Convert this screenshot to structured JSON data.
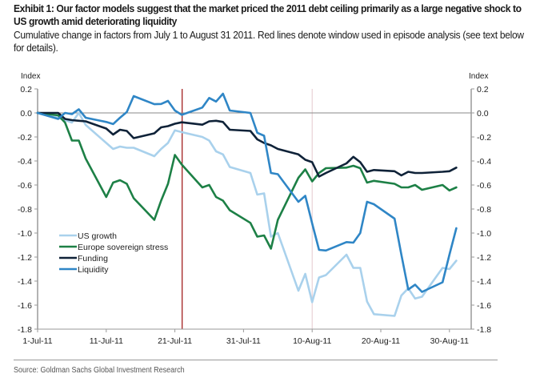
{
  "exhibit": {
    "title": "Exhibit 1: Our factor models suggest that the market priced the 2011 debt ceiling primarily as a large negative shock to US growth amid deteriorating liquidity",
    "subtitle": "Cumulative change in factors from July 1 to August 31 2011. Red lines denote window used in episode analysis (see text below for details).",
    "source": "Source: Goldman Sachs Global Investment Research"
  },
  "chart_data": {
    "type": "line",
    "title": "Exhibit 1: Our factor models suggest that the market priced the 2011 debt ceiling primarily as a large negative shock to US growth amid deteriorating liquidity",
    "xlabel": "",
    "ylabel": "Index",
    "ylabel_right": "Index",
    "ylim": [
      -1.8,
      0.2
    ],
    "yticks": [
      "0.2",
      "0.0",
      "-0.2",
      "-0.4",
      "-0.6",
      "-0.8",
      "-1.0",
      "-1.2",
      "-1.4",
      "-1.6",
      "-1.8"
    ],
    "ytick_values": [
      0.2,
      0.0,
      -0.2,
      -0.4,
      -0.6,
      -0.8,
      -1.0,
      -1.2,
      -1.4,
      -1.6,
      -1.8
    ],
    "xlim": [
      "1-Jul-11",
      "2-Sep-11"
    ],
    "xtick_labels": [
      "1-Jul-11",
      "11-Jul-11",
      "21-Jul-11",
      "31-Jul-11",
      "10-Aug-11",
      "20-Aug-11",
      "30-Aug-11"
    ],
    "xtick_days": [
      0,
      10,
      20,
      30,
      40,
      50,
      60
    ],
    "grid": false,
    "legend_position": "bottom-left",
    "reference_lines": [
      {
        "type": "vertical",
        "date": "22-Jul-11",
        "day": 21,
        "color": "#a31f1f",
        "label": "episode window start"
      },
      {
        "type": "vertical",
        "date": "10-Aug-11",
        "day": 40,
        "color": "#e3c9cc",
        "label": "episode window end"
      },
      {
        "type": "horizontal",
        "value": 0.0,
        "color": "#8a8a8a"
      }
    ],
    "x": [
      "1-Jul-11",
      "4-Jul-11",
      "5-Jul-11",
      "6-Jul-11",
      "7-Jul-11",
      "8-Jul-11",
      "11-Jul-11",
      "12-Jul-11",
      "13-Jul-11",
      "14-Jul-11",
      "15-Jul-11",
      "18-Jul-11",
      "19-Jul-11",
      "20-Jul-11",
      "21-Jul-11",
      "22-Jul-11",
      "25-Jul-11",
      "26-Jul-11",
      "27-Jul-11",
      "28-Jul-11",
      "29-Jul-11",
      "1-Aug-11",
      "2-Aug-11",
      "3-Aug-11",
      "4-Aug-11",
      "5-Aug-11",
      "8-Aug-11",
      "9-Aug-11",
      "10-Aug-11",
      "11-Aug-11",
      "12-Aug-11",
      "15-Aug-11",
      "16-Aug-11",
      "17-Aug-11",
      "18-Aug-11",
      "19-Aug-11",
      "22-Aug-11",
      "23-Aug-11",
      "24-Aug-11",
      "25-Aug-11",
      "26-Aug-11",
      "29-Aug-11",
      "30-Aug-11",
      "31-Aug-11"
    ],
    "x_days": [
      0,
      3,
      4,
      5,
      6,
      7,
      10,
      11,
      12,
      13,
      14,
      17,
      18,
      19,
      20,
      21,
      24,
      25,
      26,
      27,
      28,
      31,
      32,
      33,
      34,
      35,
      38,
      39,
      40,
      41,
      42,
      45,
      46,
      47,
      48,
      49,
      52,
      53,
      54,
      55,
      56,
      59,
      60,
      61
    ],
    "series": [
      {
        "name": "US growth",
        "color": "#a9d1ec",
        "values": [
          0,
          -0.04,
          -0.06,
          -0.08,
          0.0,
          -0.1,
          -0.25,
          -0.3,
          -0.28,
          -0.29,
          -0.29,
          -0.36,
          -0.3,
          -0.25,
          -0.145,
          -0.16,
          -0.2,
          -0.23,
          -0.32,
          -0.345,
          -0.45,
          -0.5,
          -0.68,
          -0.67,
          -1.03,
          -1.0,
          -1.48,
          -1.34,
          -1.575,
          -1.37,
          -1.35,
          -1.18,
          -1.29,
          -1.29,
          -1.57,
          -1.675,
          -1.69,
          -1.52,
          -1.46,
          -1.545,
          -1.53,
          -1.29,
          -1.3,
          -1.23
        ]
      },
      {
        "name": "Europe sovereign stress",
        "color": "#1d8046",
        "values": [
          0,
          -0.02,
          -0.08,
          -0.23,
          -0.23,
          -0.38,
          -0.7,
          -0.58,
          -0.56,
          -0.59,
          -0.71,
          -0.89,
          -0.73,
          -0.59,
          -0.35,
          -0.43,
          -0.62,
          -0.6,
          -0.7,
          -0.73,
          -0.81,
          -0.915,
          -1.03,
          -1.02,
          -1.13,
          -0.89,
          -0.54,
          -0.47,
          -0.57,
          -0.5,
          -0.46,
          -0.455,
          -0.44,
          -0.46,
          -0.58,
          -0.565,
          -0.59,
          -0.62,
          -0.62,
          -0.6,
          -0.64,
          -0.6,
          -0.645,
          -0.62
        ]
      },
      {
        "name": "Funding",
        "color": "#0f2238",
        "values": [
          0,
          0.0,
          -0.05,
          -0.06,
          -0.065,
          -0.07,
          -0.13,
          -0.18,
          -0.14,
          -0.15,
          -0.21,
          -0.17,
          -0.12,
          -0.11,
          -0.09,
          -0.078,
          -0.098,
          -0.07,
          -0.065,
          -0.075,
          -0.14,
          -0.15,
          -0.22,
          -0.25,
          -0.27,
          -0.3,
          -0.345,
          -0.39,
          -0.41,
          -0.53,
          -0.5,
          -0.42,
          -0.365,
          -0.41,
          -0.49,
          -0.475,
          -0.485,
          -0.52,
          -0.49,
          -0.5,
          -0.5,
          -0.49,
          -0.485,
          -0.455
        ]
      },
      {
        "name": "Liquidity",
        "color": "#2f86c6",
        "values": [
          0,
          -0.05,
          0.0,
          -0.01,
          0.03,
          -0.04,
          -0.075,
          -0.093,
          -0.04,
          0.007,
          0.14,
          0.073,
          0.075,
          0.1,
          0.02,
          -0.016,
          0.045,
          0.125,
          0.095,
          0.16,
          0.02,
          0.0,
          -0.165,
          -0.19,
          -0.5,
          -0.51,
          -0.74,
          -0.69,
          -0.92,
          -1.14,
          -1.145,
          -1.075,
          -1.08,
          -1.0,
          -0.74,
          -0.76,
          -0.88,
          -1.18,
          -1.47,
          -1.43,
          -1.49,
          -1.41,
          -1.18,
          -0.96
        ]
      }
    ],
    "axis_color": "#9a9a9a"
  }
}
